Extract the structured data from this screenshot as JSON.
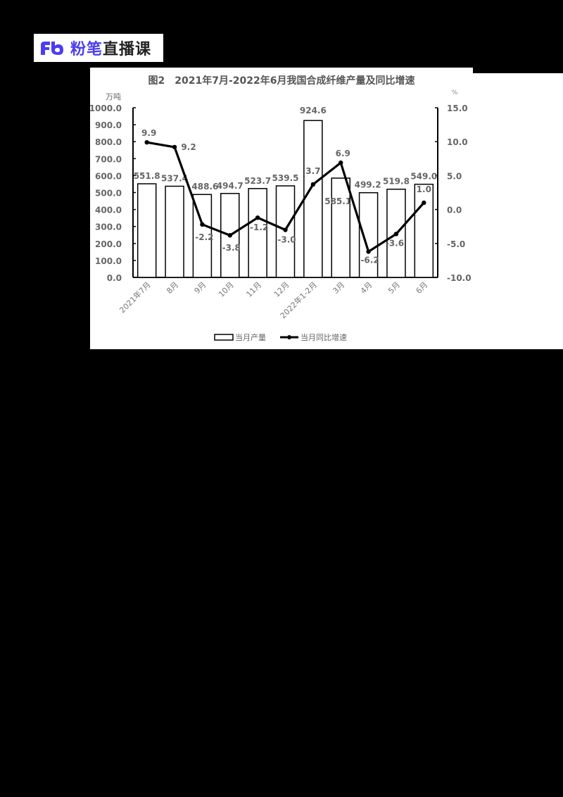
{
  "logo": {
    "brand_part1": "粉笔",
    "brand_part2": "直播课",
    "icon": "fb-logo-icon",
    "brand_color": "#4b3df0"
  },
  "chart_data": {
    "type": "bar+line",
    "title": "图2　2021年7月-2022年6月我国合成纤维产量及同比增速",
    "categories": [
      "2021年7月",
      "8月",
      "9月",
      "10月",
      "11月",
      "12月",
      "2022年1-2月",
      "3月",
      "4月",
      "5月",
      "6月"
    ],
    "series": [
      {
        "name": "当月产量",
        "type": "bar",
        "axis": "left",
        "values": [
          551.8,
          537.4,
          488.6,
          494.7,
          523.7,
          539.5,
          924.6,
          585.1,
          499.2,
          519.8,
          549.0
        ],
        "labels": [
          "551.8",
          "537.4",
          "488.6",
          "494.7",
          "523.7",
          "539.5",
          "924.6",
          "585.1",
          "499.2",
          "519.8",
          "549.0"
        ]
      },
      {
        "name": "当月同比增速",
        "type": "line",
        "axis": "right",
        "values": [
          9.9,
          9.2,
          -2.2,
          -3.8,
          -1.2,
          -3.0,
          3.7,
          6.9,
          -6.2,
          -3.6,
          1.0
        ],
        "labels": [
          "9.9",
          "9.2",
          "-2.2",
          "-3.8",
          "-1.2",
          "-3.0",
          "3.7",
          "6.9",
          "-6.2",
          "-3.6",
          "1.0"
        ]
      }
    ],
    "y_left": {
      "unit": "万吨",
      "range": [
        0,
        1000
      ],
      "ticks": [
        "1000.0",
        "900.0",
        "800.0",
        "700.0",
        "600.0",
        "500.0",
        "400.0",
        "300.0",
        "200.0",
        "100.0",
        "0.0"
      ]
    },
    "y_right": {
      "unit": "%",
      "range": [
        -10,
        15
      ],
      "ticks": [
        "15.0",
        "10.0",
        "5.0",
        "0.0",
        "-5.0",
        "-10.0"
      ]
    },
    "legend": [
      "当月产量",
      "当月同比增速"
    ],
    "legend_position": "bottom",
    "grid": false
  }
}
